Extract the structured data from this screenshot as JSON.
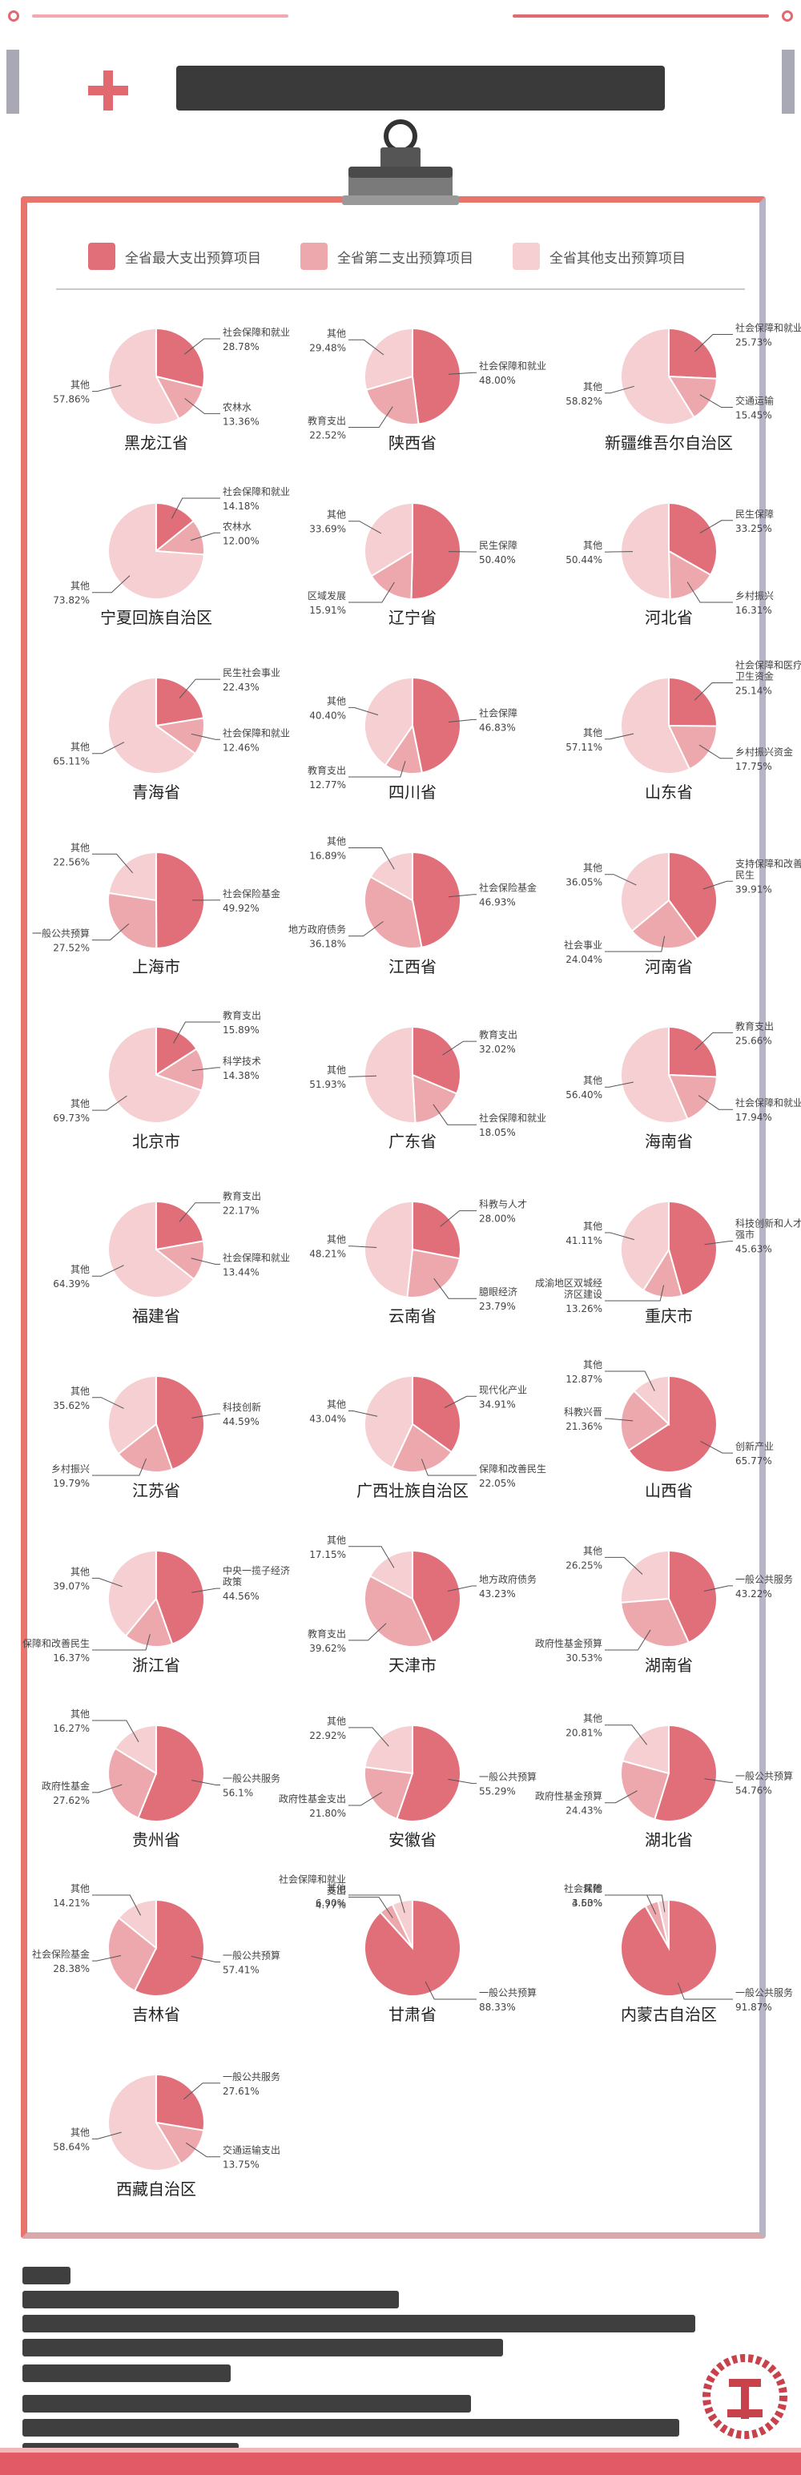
{
  "palette": {
    "largest": "#e06f7a",
    "second": "#eda8ad",
    "other": "#f5cfd2",
    "accent": "#e06a70",
    "frame": "#e8746b"
  },
  "legend": {
    "largest_label": "全省最大支出预算项目",
    "second_label": "全省第二支出预算项目",
    "other_label": "全省其他支出预算项目"
  },
  "chart_data": [
    {
      "type": "pie",
      "title": "黑龙江省",
      "slices": [
        {
          "label": "社会保障和就业",
          "value": 28.78,
          "pct": "28.78%",
          "role": "largest"
        },
        {
          "label": "农林水",
          "value": 13.36,
          "pct": "13.36%",
          "role": "second"
        },
        {
          "label": "其他",
          "value": 57.86,
          "pct": "57.86%",
          "role": "other"
        }
      ]
    },
    {
      "type": "pie",
      "title": "陕西省",
      "slices": [
        {
          "label": "社会保障和就业",
          "value": 48.0,
          "pct": "48.00%",
          "role": "largest"
        },
        {
          "label": "教育支出",
          "value": 22.52,
          "pct": "22.52%",
          "role": "second"
        },
        {
          "label": "其他",
          "value": 29.48,
          "pct": "29.48%",
          "role": "other"
        }
      ]
    },
    {
      "type": "pie",
      "title": "新疆维吾尔自治区",
      "slices": [
        {
          "label": "社会保障和就业",
          "value": 25.73,
          "pct": "25.73%",
          "role": "largest"
        },
        {
          "label": "交通运输",
          "value": 15.45,
          "pct": "15.45%",
          "role": "second"
        },
        {
          "label": "其他",
          "value": 58.82,
          "pct": "58.82%",
          "role": "other"
        }
      ]
    },
    {
      "type": "pie",
      "title": "宁夏回族自治区",
      "slices": [
        {
          "label": "社会保障和就业",
          "value": 14.18,
          "pct": "14.18%",
          "role": "largest"
        },
        {
          "label": "农林水",
          "value": 12.0,
          "pct": "12.00%",
          "role": "second"
        },
        {
          "label": "其他",
          "value": 73.82,
          "pct": "73.82%",
          "role": "other"
        }
      ]
    },
    {
      "type": "pie",
      "title": "辽宁省",
      "slices": [
        {
          "label": "民生保障",
          "value": 50.4,
          "pct": "50.40%",
          "role": "largest"
        },
        {
          "label": "区域发展",
          "value": 15.91,
          "pct": "15.91%",
          "role": "second"
        },
        {
          "label": "其他",
          "value": 33.69,
          "pct": "33.69%",
          "role": "other"
        }
      ]
    },
    {
      "type": "pie",
      "title": "河北省",
      "slices": [
        {
          "label": "民生保障",
          "value": 33.25,
          "pct": "33.25%",
          "role": "largest"
        },
        {
          "label": "乡村振兴",
          "value": 16.31,
          "pct": "16.31%",
          "role": "second"
        },
        {
          "label": "其他",
          "value": 50.44,
          "pct": "50.44%",
          "role": "other"
        }
      ]
    },
    {
      "type": "pie",
      "title": "青海省",
      "slices": [
        {
          "label": "民生社会事业",
          "value": 22.43,
          "pct": "22.43%",
          "role": "largest"
        },
        {
          "label": "社会保障和就业",
          "value": 12.46,
          "pct": "12.46%",
          "role": "second"
        },
        {
          "label": "其他",
          "value": 65.11,
          "pct": "65.11%",
          "role": "other"
        }
      ]
    },
    {
      "type": "pie",
      "title": "四川省",
      "slices": [
        {
          "label": "社会保障",
          "value": 46.83,
          "pct": "46.83%",
          "role": "largest"
        },
        {
          "label": "教育支出",
          "value": 12.77,
          "pct": "12.77%",
          "role": "second"
        },
        {
          "label": "其他",
          "value": 40.4,
          "pct": "40.40%",
          "role": "other"
        }
      ]
    },
    {
      "type": "pie",
      "title": "山东省",
      "slices": [
        {
          "label": "社会保障和医疗卫生资金",
          "value": 25.14,
          "pct": "25.14%",
          "role": "largest"
        },
        {
          "label": "乡村振兴资金",
          "value": 17.75,
          "pct": "17.75%",
          "role": "second"
        },
        {
          "label": "其他",
          "value": 57.11,
          "pct": "57.11%",
          "role": "other"
        }
      ]
    },
    {
      "type": "pie",
      "title": "上海市",
      "slices": [
        {
          "label": "社会保险基金",
          "value": 49.92,
          "pct": "49.92%",
          "role": "largest"
        },
        {
          "label": "一般公共预算",
          "value": 27.52,
          "pct": "27.52%",
          "role": "second"
        },
        {
          "label": "其他",
          "value": 22.56,
          "pct": "22.56%",
          "role": "other"
        }
      ]
    },
    {
      "type": "pie",
      "title": "江西省",
      "slices": [
        {
          "label": "社会保险基金",
          "value": 46.93,
          "pct": "46.93%",
          "role": "largest"
        },
        {
          "label": "地方政府债务",
          "value": 36.18,
          "pct": "36.18%",
          "role": "second"
        },
        {
          "label": "其他",
          "value": 16.89,
          "pct": "16.89%",
          "role": "other"
        }
      ]
    },
    {
      "type": "pie",
      "title": "河南省",
      "slices": [
        {
          "label": "支持保障和改善民生",
          "value": 39.91,
          "pct": "39.91%",
          "role": "largest"
        },
        {
          "label": "社会事业",
          "value": 24.04,
          "pct": "24.04%",
          "role": "second"
        },
        {
          "label": "其他",
          "value": 36.05,
          "pct": "36.05%",
          "role": "other"
        }
      ]
    },
    {
      "type": "pie",
      "title": "北京市",
      "slices": [
        {
          "label": "教育支出",
          "value": 15.89,
          "pct": "15.89%",
          "role": "largest"
        },
        {
          "label": "科学技术",
          "value": 14.38,
          "pct": "14.38%",
          "role": "second"
        },
        {
          "label": "其他",
          "value": 69.73,
          "pct": "69.73%",
          "role": "other"
        }
      ]
    },
    {
      "type": "pie",
      "title": "广东省",
      "slices": [
        {
          "label": "教育支出",
          "value": 32.02,
          "pct": "32.02%",
          "role": "largest"
        },
        {
          "label": "社会保障和就业",
          "value": 18.05,
          "pct": "18.05%",
          "role": "second"
        },
        {
          "label": "其他",
          "value": 51.93,
          "pct": "51.93%",
          "role": "other"
        }
      ]
    },
    {
      "type": "pie",
      "title": "海南省",
      "slices": [
        {
          "label": "教育支出",
          "value": 25.66,
          "pct": "25.66%",
          "role": "largest"
        },
        {
          "label": "社会保障和就业",
          "value": 17.94,
          "pct": "17.94%",
          "role": "second"
        },
        {
          "label": "其他",
          "value": 56.4,
          "pct": "56.40%",
          "role": "other"
        }
      ]
    },
    {
      "type": "pie",
      "title": "福建省",
      "slices": [
        {
          "label": "教育支出",
          "value": 22.17,
          "pct": "22.17%",
          "role": "largest"
        },
        {
          "label": "社会保障和就业",
          "value": 13.44,
          "pct": "13.44%",
          "role": "second"
        },
        {
          "label": "其他",
          "value": 64.39,
          "pct": "64.39%",
          "role": "other"
        }
      ]
    },
    {
      "type": "pie",
      "title": "云南省",
      "slices": [
        {
          "label": "科教与人才",
          "value": 28.0,
          "pct": "28.00%",
          "role": "largest"
        },
        {
          "label": "臆眼经济",
          "value": 23.79,
          "pct": "23.79%",
          "role": "second"
        },
        {
          "label": "其他",
          "value": 48.21,
          "pct": "48.21%",
          "role": "other"
        }
      ]
    },
    {
      "type": "pie",
      "title": "重庆市",
      "slices": [
        {
          "label": "科技创新和人才强市",
          "value": 45.63,
          "pct": "45.63%",
          "role": "largest"
        },
        {
          "label": "成渝地区双城经济区建设",
          "value": 13.26,
          "pct": "13.26%",
          "role": "second"
        },
        {
          "label": "其他",
          "value": 41.11,
          "pct": "41.11%",
          "role": "other"
        }
      ]
    },
    {
      "type": "pie",
      "title": "江苏省",
      "slices": [
        {
          "label": "科技创新",
          "value": 44.59,
          "pct": "44.59%",
          "role": "largest"
        },
        {
          "label": "乡村振兴",
          "value": 19.79,
          "pct": "19.79%",
          "role": "second"
        },
        {
          "label": "其他",
          "value": 35.62,
          "pct": "35.62%",
          "role": "other"
        }
      ]
    },
    {
      "type": "pie",
      "title": "广西壮族自治区",
      "slices": [
        {
          "label": "现代化产业",
          "value": 34.91,
          "pct": "34.91%",
          "role": "largest"
        },
        {
          "label": "保障和改善民生",
          "value": 22.05,
          "pct": "22.05%",
          "role": "second"
        },
        {
          "label": "其他",
          "value": 43.04,
          "pct": "43.04%",
          "role": "other"
        }
      ]
    },
    {
      "type": "pie",
      "title": "山西省",
      "slices": [
        {
          "label": "创新产业",
          "value": 65.77,
          "pct": "65.77%",
          "role": "largest"
        },
        {
          "label": "科教兴晋",
          "value": 21.36,
          "pct": "21.36%",
          "role": "second"
        },
        {
          "label": "其他",
          "value": 12.87,
          "pct": "12.87%",
          "role": "other"
        }
      ]
    },
    {
      "type": "pie",
      "title": "浙江省",
      "slices": [
        {
          "label": "中央一揽子经济政策",
          "value": 44.56,
          "pct": "44.56%",
          "role": "largest"
        },
        {
          "label": "保障和改善民生",
          "value": 16.37,
          "pct": "16.37%",
          "role": "second"
        },
        {
          "label": "其他",
          "value": 39.07,
          "pct": "39.07%",
          "role": "other"
        }
      ]
    },
    {
      "type": "pie",
      "title": "天津市",
      "slices": [
        {
          "label": "地方政府债务",
          "value": 43.23,
          "pct": "43.23%",
          "role": "largest"
        },
        {
          "label": "教育支出",
          "value": 39.62,
          "pct": "39.62%",
          "role": "second"
        },
        {
          "label": "其他",
          "value": 17.15,
          "pct": "17.15%",
          "role": "other"
        }
      ]
    },
    {
      "type": "pie",
      "title": "湖南省",
      "slices": [
        {
          "label": "一般公共服务",
          "value": 43.22,
          "pct": "43.22%",
          "role": "largest"
        },
        {
          "label": "政府性基金预算",
          "value": 30.53,
          "pct": "30.53%",
          "role": "second"
        },
        {
          "label": "其他",
          "value": 26.25,
          "pct": "26.25%",
          "role": "other"
        }
      ]
    },
    {
      "type": "pie",
      "title": "贵州省",
      "slices": [
        {
          "label": "一般公共服务",
          "value": 56.1,
          "pct": "56.1%",
          "role": "largest"
        },
        {
          "label": "政府性基金",
          "value": 27.62,
          "pct": "27.62%",
          "role": "second"
        },
        {
          "label": "其他",
          "value": 16.27,
          "pct": "16.27%",
          "role": "other"
        }
      ]
    },
    {
      "type": "pie",
      "title": "安徽省",
      "slices": [
        {
          "label": "一般公共预算",
          "value": 55.29,
          "pct": "55.29%",
          "role": "largest"
        },
        {
          "label": "政府性基金支出",
          "value": 21.8,
          "pct": "21.80%",
          "role": "second"
        },
        {
          "label": "其他",
          "value": 22.92,
          "pct": "22.92%",
          "role": "other"
        }
      ]
    },
    {
      "type": "pie",
      "title": "湖北省",
      "slices": [
        {
          "label": "一般公共预算",
          "value": 54.76,
          "pct": "54.76%",
          "role": "largest"
        },
        {
          "label": "政府性基金预算",
          "value": 24.43,
          "pct": "24.43%",
          "role": "second"
        },
        {
          "label": "其他",
          "value": 20.81,
          "pct": "20.81%",
          "role": "other"
        }
      ]
    },
    {
      "type": "pie",
      "title": "吉林省",
      "slices": [
        {
          "label": "一般公共预算",
          "value": 57.41,
          "pct": "57.41%",
          "role": "largest"
        },
        {
          "label": "社会保险基金",
          "value": 28.38,
          "pct": "28.38%",
          "role": "second"
        },
        {
          "label": "其他",
          "value": 14.21,
          "pct": "14.21%",
          "role": "other"
        }
      ]
    },
    {
      "type": "pie",
      "title": "甘肃省",
      "slices": [
        {
          "label": "一般公共预算",
          "value": 88.33,
          "pct": "88.33%",
          "role": "largest"
        },
        {
          "label": "社会保障和就业支出",
          "value": 4.77,
          "pct": "4.77%",
          "role": "second"
        },
        {
          "label": "其他",
          "value": 6.9,
          "pct": "6.90%",
          "role": "other"
        }
      ]
    },
    {
      "type": "pie",
      "title": "内蒙古自治区",
      "slices": [
        {
          "label": "一般公共服务",
          "value": 91.87,
          "pct": "91.87%",
          "role": "largest"
        },
        {
          "label": "社会保障",
          "value": 4.5,
          "pct": "4.50%",
          "role": "second"
        },
        {
          "label": "其他",
          "value": 3.63,
          "pct": "3.63%",
          "role": "other"
        }
      ]
    },
    {
      "type": "pie",
      "title": "西藏自治区",
      "slices": [
        {
          "label": "一般公共服务",
          "value": 27.61,
          "pct": "27.61%",
          "role": "largest"
        },
        {
          "label": "交通运输支出",
          "value": 13.75,
          "pct": "13.75%",
          "role": "second"
        },
        {
          "label": "其他",
          "value": 58.64,
          "pct": "58.64%",
          "role": "other"
        }
      ]
    }
  ]
}
